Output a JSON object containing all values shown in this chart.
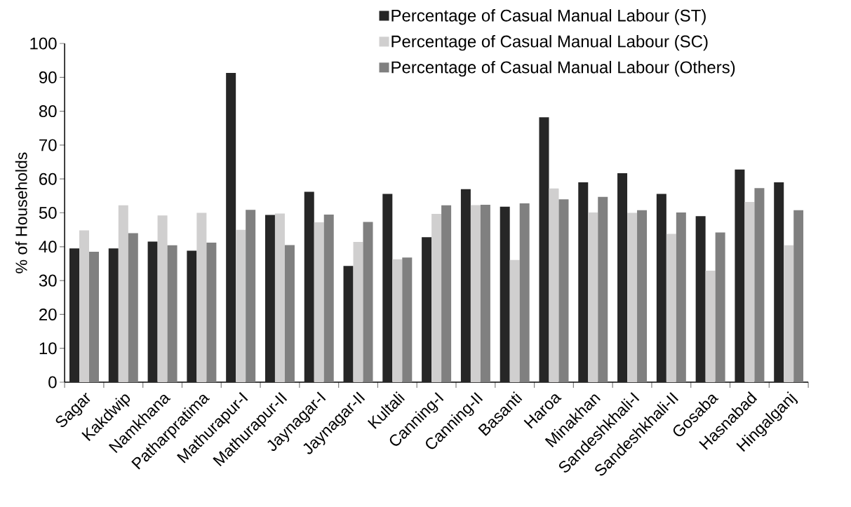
{
  "chart_data": {
    "type": "bar",
    "ylabel": "% of Households",
    "categories": [
      "Sagar",
      "Kakdwip",
      "Namkhana",
      "Patharpratima",
      "Mathurapur-I",
      "Mathurapur-II",
      "Jaynagar-I",
      "Jaynagar-II",
      "Kultali",
      "Canning-I",
      "Canning-II",
      "Basanti",
      "Haroa",
      "Minakhan",
      "Sandeshkhali-I",
      "Sandeshkhali-II",
      "Gosaba",
      "Hasnabad",
      "Hingalganj"
    ],
    "series": [
      {
        "name": "Percentage of Casual Manual Labour (ST)",
        "color": "#262626",
        "values": [
          39.5,
          39.5,
          41.5,
          38.8,
          91.3,
          49.4,
          56.2,
          34.3,
          55.6,
          42.8,
          57.0,
          51.8,
          78.2,
          59.0,
          61.7,
          55.6,
          49.0,
          62.8,
          59.0
        ]
      },
      {
        "name": "Percentage of Casual Manual Labour (SC)",
        "color": "#d0cfcf",
        "values": [
          44.8,
          52.2,
          49.2,
          50.0,
          45.0,
          49.8,
          47.2,
          41.4,
          36.3,
          49.7,
          52.3,
          36.1,
          57.2,
          50.1,
          50.0,
          43.8,
          32.9,
          53.2,
          40.4
        ]
      },
      {
        "name": "Percentage of Casual Manual Labour (Others)",
        "color": "#808080",
        "values": [
          38.5,
          44.0,
          40.4,
          41.2,
          50.9,
          40.5,
          49.5,
          47.3,
          36.8,
          52.2,
          52.4,
          52.8,
          54.0,
          54.7,
          50.8,
          50.1,
          44.2,
          57.3,
          50.8
        ]
      }
    ],
    "ylim": [
      0,
      100
    ],
    "yticks": [
      0,
      10,
      20,
      30,
      40,
      50,
      60,
      70,
      80,
      90,
      100
    ],
    "grid": false,
    "legend": "top right"
  }
}
